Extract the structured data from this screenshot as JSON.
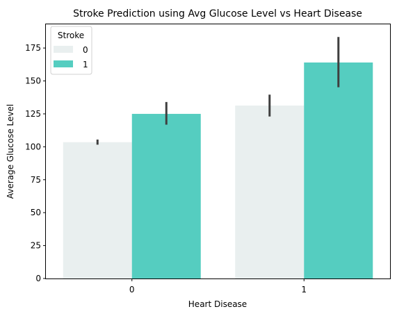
{
  "chart_data": {
    "type": "bar",
    "title": "Stroke Prediction using Avg Glucose Level vs Heart Disease",
    "xlabel": "Heart Disease",
    "ylabel": "Average Glucose Level",
    "categories": [
      "0",
      "1"
    ],
    "ylim": [
      0,
      193
    ],
    "yticks": [
      0,
      25,
      50,
      75,
      100,
      125,
      150,
      175
    ],
    "grid": false,
    "legend": {
      "title": "Stroke",
      "placement": "top-left"
    },
    "series": [
      {
        "name": "0",
        "color": "#e9efef",
        "values": [
          103.5,
          131.3
        ],
        "ci_low": [
          101.6,
          123.0
        ],
        "ci_high": [
          105.5,
          139.6
        ]
      },
      {
        "name": "1",
        "color": "#55cdc0",
        "values": [
          125.0,
          164.0
        ],
        "ci_low": [
          116.8,
          145.2
        ],
        "ci_high": [
          134.0,
          183.4
        ]
      }
    ],
    "errorbar_color": "#3f3f3f"
  }
}
